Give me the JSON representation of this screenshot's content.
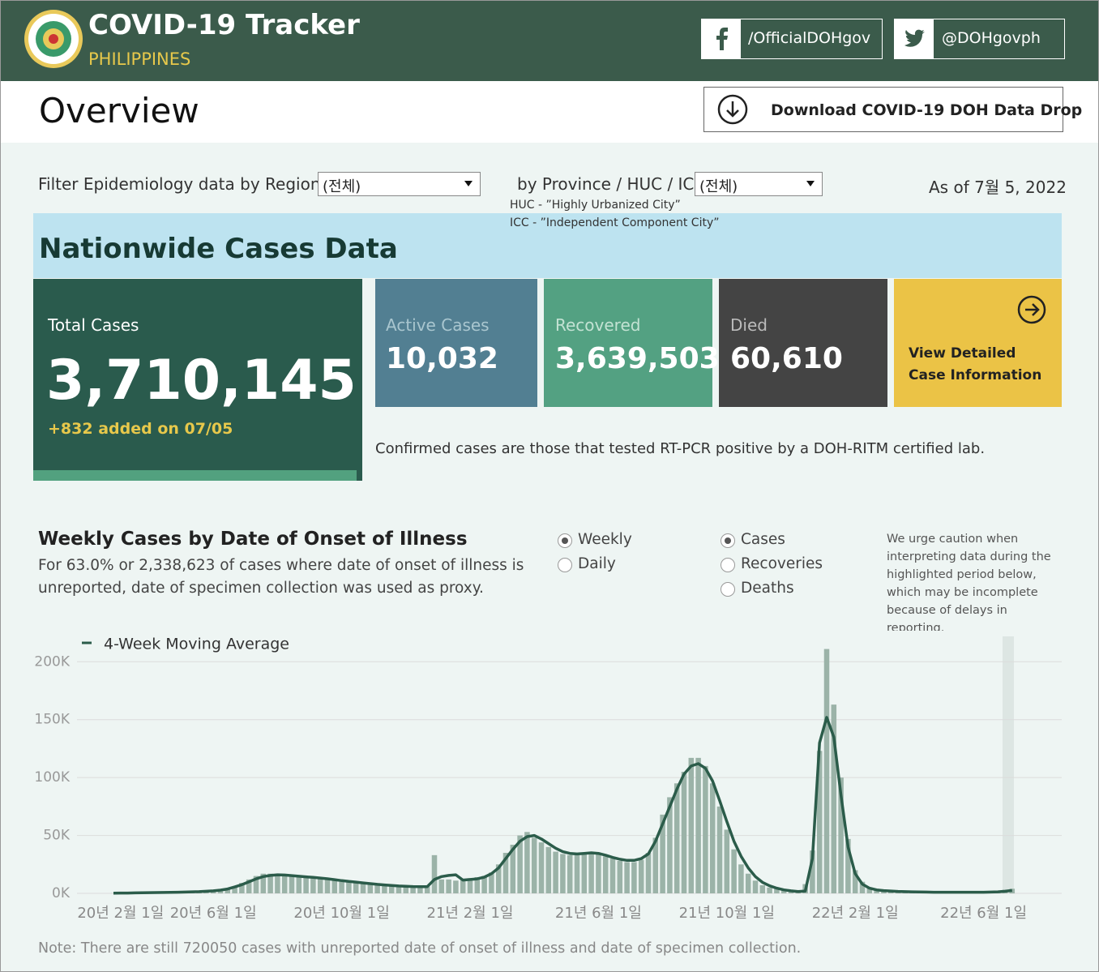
{
  "header": {
    "title": "COVID-19 Tracker",
    "subtitle": "PHILIPPINES",
    "facebook": "/OfficialDOHgov",
    "twitter": "@DOHgovph"
  },
  "overview": {
    "title": "Overview",
    "download": "Download COVID-19 DOH Data Drop"
  },
  "filters": {
    "region_label": "Filter Epidemiology data by Region:",
    "region_value": "(전체)",
    "province_label": "by Province / HUC / ICC:",
    "province_value": "(전체)",
    "huc_note": "HUC - ”Highly Urbanized City”",
    "icc_note": "ICC - ”Independent Component City”",
    "as_of": "As of 7월 5, 2022"
  },
  "nationwide": {
    "title": "Nationwide Cases Data",
    "total_label": "Total Cases",
    "total": "3,710,145",
    "added": "+832 added on 07/05",
    "active_label": "Active Cases",
    "active": "10,032",
    "recovered_label": "Recovered",
    "recovered": "3,639,503",
    "died_label": "Died",
    "died": "60,610",
    "detail": [
      "View Detailed",
      "Case Information"
    ],
    "note": "Confirmed cases are those that tested RT-PCR positive by a DOH-RITM certified lab."
  },
  "weekly": {
    "title": "Weekly Cases by Date of Onset of Illness",
    "description": [
      "For 63.0% or 2,338,623 of cases where date of onset of illness is",
      "unreported, date of specimen collection was used as proxy."
    ],
    "period_options": [
      "Weekly",
      "Daily"
    ],
    "period_selected": 0,
    "measure_options": [
      "Cases",
      "Recoveries",
      "Deaths"
    ],
    "measure_selected": 0,
    "caution": [
      "We urge caution when",
      "interpreting data during the",
      "highlighted period below,",
      "which may be incomplete",
      "because of delays in",
      "reporting."
    ],
    "footnote": "Note: There are still 720050 cases with unreported date of onset of illness and date of specimen collection."
  },
  "chart_data": {
    "type": "bar",
    "categories": [
      null,
      "20년 2월 1일",
      null,
      null,
      null,
      null,
      null,
      null,
      null,
      null,
      null,
      null,
      null,
      null,
      "20년 6월 1일",
      null,
      null,
      null,
      null,
      null,
      null,
      null,
      null,
      null,
      null,
      null,
      null,
      null,
      null,
      null,
      null,
      null,
      "20년 10월 1일",
      null,
      null,
      null,
      null,
      null,
      null,
      null,
      null,
      null,
      null,
      null,
      null,
      null,
      null,
      null,
      null,
      null,
      "21년 2월 1일",
      null,
      null,
      null,
      null,
      null,
      null,
      null,
      null,
      null,
      null,
      null,
      null,
      null,
      null,
      null,
      null,
      null,
      "21년 6월 1일",
      null,
      null,
      null,
      null,
      null,
      null,
      null,
      null,
      null,
      null,
      null,
      null,
      null,
      null,
      null,
      null,
      null,
      "21년 10월 1일",
      null,
      null,
      null,
      null,
      null,
      null,
      null,
      null,
      null,
      null,
      null,
      null,
      null,
      null,
      null,
      null,
      null,
      "22년 2월 1일",
      null,
      null,
      null,
      null,
      null,
      null,
      null,
      null,
      null,
      null,
      null,
      null,
      null,
      null,
      null,
      null,
      null,
      "22년 6월 1일",
      null,
      null,
      null,
      null
    ],
    "series": [
      {
        "color": "#9bb3a8",
        "values": [
          100,
          200,
          300,
          400,
          500,
          600,
          700,
          800,
          900,
          1000,
          1200,
          1400,
          1700,
          2000,
          2500,
          3000,
          4500,
          6000,
          9000,
          12000,
          15000,
          17000,
          17000,
          16000,
          15000,
          14500,
          14000,
          13500,
          13000,
          12500,
          12000,
          11000,
          10000,
          9500,
          9000,
          8500,
          8000,
          7500,
          7000,
          6500,
          6000,
          6000,
          5500,
          5500,
          6000,
          33000,
          12000,
          12000,
          11000,
          12000,
          13000,
          14000,
          15000,
          18000,
          25000,
          35000,
          42000,
          50000,
          53000,
          48000,
          44000,
          40000,
          36000,
          34000,
          33000,
          33000,
          34000,
          35000,
          34000,
          32000,
          30000,
          28000,
          27000,
          27000,
          29000,
          35000,
          48000,
          68000,
          83000,
          95000,
          105000,
          117000,
          117000,
          110000,
          95000,
          75000,
          55000,
          38000,
          25000,
          17000,
          11000,
          7000,
          5000,
          4000,
          3000,
          2500,
          2000,
          8000,
          37000,
          123000,
          211000,
          163000,
          100000,
          47000,
          20000,
          10000,
          5000,
          3500,
          2800,
          2400,
          2100,
          1900,
          1700,
          1600,
          1500,
          1400,
          1300,
          1200,
          1200,
          1100,
          1100,
          1200,
          1300,
          1600,
          2200,
          3000,
          4000
        ]
      },
      {
        "name": "4-Week Moving Average",
        "type": "line",
        "color": "#2b5c4a",
        "values": [
          200,
          250,
          300,
          400,
          500,
          600,
          700,
          800,
          900,
          1000,
          1100,
          1300,
          1500,
          1800,
          2200,
          2800,
          3800,
          5500,
          7500,
          10000,
          12500,
          14500,
          15500,
          16000,
          15800,
          15300,
          14800,
          14300,
          13800,
          13200,
          12600,
          11800,
          11000,
          10300,
          9700,
          9000,
          8400,
          7800,
          7300,
          6800,
          6400,
          6100,
          5900,
          5800,
          5800,
          12000,
          14500,
          15500,
          16000,
          11500,
          12000,
          12500,
          14000,
          17000,
          22000,
          30000,
          38000,
          45000,
          49000,
          50000,
          47000,
          43000,
          39000,
          36000,
          34500,
          34000,
          34500,
          35000,
          34500,
          33000,
          31000,
          29500,
          28500,
          28500,
          30000,
          34000,
          45000,
          60000,
          75000,
          90000,
          103000,
          110000,
          112000,
          108000,
          97000,
          80000,
          62000,
          45000,
          32000,
          22000,
          14500,
          9500,
          6500,
          4500,
          3000,
          2200,
          1600,
          2000,
          30000,
          130000,
          152000,
          135000,
          85000,
          40000,
          17000,
          8000,
          4500,
          3000,
          2400,
          2000,
          1700,
          1500,
          1300,
          1200,
          1100,
          1000,
          1000,
          1000,
          1000,
          1000,
          1000,
          1000,
          1000,
          1100,
          1300,
          1800,
          2500
        ]
      }
    ],
    "ylim": [
      0,
      210000
    ],
    "yticks": [
      {
        "value": 0,
        "label": "0K"
      },
      {
        "value": 50000,
        "label": "50K"
      },
      {
        "value": 100000,
        "label": "100K"
      },
      {
        "value": 150000,
        "label": "150K"
      },
      {
        "value": 200000,
        "label": "200K"
      }
    ],
    "grid": true
  }
}
